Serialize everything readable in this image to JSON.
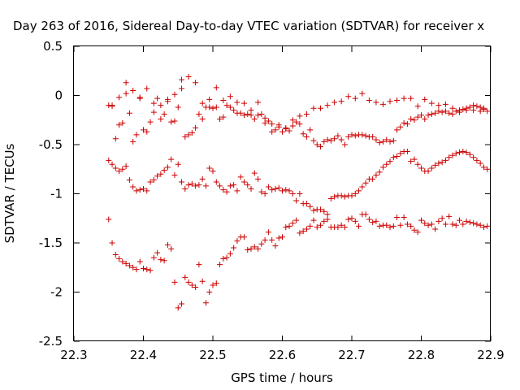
{
  "chart_data": {
    "type": "scatter",
    "title": "Day 263 of 2016, Sidereal Day-to-day VTEC variation (SDTVAR) for receiver x",
    "xlabel": "GPS time / hours",
    "ylabel": "SDTVAR / TECUs",
    "xlim": [
      22.3,
      22.9
    ],
    "ylim": [
      -2.5,
      0.5
    ],
    "xticks": [
      "22.3",
      "22.4",
      "22.5",
      "22.6",
      "22.7",
      "22.8",
      "22.9"
    ],
    "yticks": [
      "0.5",
      "0",
      "-0.5",
      "-1",
      "-1.5",
      "-2",
      "-2.5"
    ],
    "grid": false,
    "marker": "+",
    "color": "#cc0000",
    "series": [
      {
        "x": [
          22.35,
          22.355,
          22.36,
          22.365,
          22.37,
          22.375,
          22.38,
          22.385,
          22.39,
          22.395,
          22.4,
          22.405,
          22.41,
          22.415,
          22.42,
          22.425,
          22.43,
          22.435,
          22.44,
          22.445,
          22.45,
          22.455,
          22.46,
          22.465,
          22.47,
          22.475,
          22.48,
          22.485,
          22.49,
          22.495,
          22.5,
          22.505,
          22.51,
          22.515,
          22.52,
          22.525,
          22.53,
          22.535,
          22.54,
          22.545,
          22.55,
          22.555,
          22.56,
          22.565,
          22.57,
          22.575,
          22.58,
          22.585,
          22.59,
          22.595,
          22.6,
          22.605,
          22.61,
          22.615,
          22.62,
          22.625,
          22.63,
          22.635,
          22.64,
          22.645,
          22.65,
          22.655,
          22.66,
          22.665,
          22.67,
          22.675,
          22.68,
          22.685,
          22.69,
          22.695,
          22.7,
          22.705,
          22.71,
          22.715,
          22.72,
          22.725,
          22.73,
          22.735,
          22.74,
          22.745,
          22.75,
          22.755,
          22.76,
          22.765,
          22.77,
          22.775,
          22.78,
          22.785,
          22.79,
          22.795,
          22.8,
          22.805,
          22.81,
          22.815,
          22.82,
          22.825,
          22.83,
          22.835,
          22.84,
          22.845,
          22.85,
          22.855,
          22.86,
          22.865,
          22.87,
          22.875,
          22.88,
          22.885,
          22.89,
          22.895
        ],
        "y": [
          -0.1,
          -0.1,
          -0.44,
          -0.3,
          -0.28,
          0.13,
          -0.18,
          -0.47,
          -0.4,
          -0.03,
          -0.35,
          -0.37,
          -0.27,
          -0.17,
          -0.03,
          -0.24,
          -0.19,
          -0.06,
          -0.27,
          -0.26,
          -0.12,
          0.16,
          -0.42,
          -0.4,
          -0.38,
          -0.33,
          -0.19,
          -0.24,
          -0.12,
          -0.12,
          -0.13,
          -0.12,
          -0.24,
          -0.22,
          -0.1,
          -0.12,
          -0.15,
          -0.18,
          -0.18,
          -0.2,
          -0.19,
          -0.2,
          -0.24,
          -0.2,
          -0.19,
          -0.28,
          -0.26,
          -0.37,
          -0.35,
          -0.32,
          -0.37,
          -0.34,
          -0.36,
          -0.31,
          -0.27,
          -0.29,
          -0.39,
          -0.42,
          -0.35,
          -0.46,
          -0.5,
          -0.52,
          -0.47,
          -0.45,
          -0.46,
          -0.44,
          -0.41,
          -0.45,
          -0.5,
          -0.42,
          -0.4,
          -0.41,
          -0.4,
          -0.4,
          -0.41,
          -0.42,
          -0.42,
          -0.45,
          -0.48,
          -0.47,
          -0.45,
          -0.47,
          -0.46,
          -0.35,
          -0.32,
          -0.28,
          -0.29,
          -0.24,
          -0.25,
          -0.22,
          -0.2,
          -0.24,
          -0.2,
          -0.19,
          -0.18,
          -0.16,
          -0.17,
          -0.16,
          -0.18,
          -0.19,
          -0.16,
          -0.15,
          -0.14,
          -0.13,
          -0.12,
          -0.1,
          -0.11,
          -0.12,
          -0.14,
          -0.16
        ]
      },
      {
        "x": [
          22.355,
          22.365,
          22.375,
          22.385,
          22.395,
          22.405,
          22.415,
          22.425,
          22.435,
          22.445,
          22.455,
          22.465,
          22.475,
          22.485,
          22.495,
          22.505,
          22.515,
          22.525,
          22.535,
          22.545,
          22.555,
          22.565,
          22.575,
          22.585,
          22.595,
          22.605,
          22.615,
          22.625,
          22.635,
          22.645,
          22.655,
          22.665,
          22.675,
          22.685,
          22.695,
          22.705,
          22.715,
          22.725,
          22.735,
          22.745,
          22.755,
          22.765,
          22.775,
          22.785,
          22.795,
          22.805,
          22.815,
          22.825,
          22.835,
          22.845,
          22.855,
          22.865,
          22.875,
          22.885,
          22.89
        ],
        "y": [
          -0.11,
          -0.02,
          0.02,
          0.05,
          -0.02,
          0.07,
          -0.08,
          -0.1,
          -0.04,
          0.01,
          0.07,
          0.19,
          0.13,
          -0.08,
          -0.04,
          0.08,
          -0.05,
          -0.01,
          -0.07,
          -0.08,
          -0.15,
          -0.07,
          -0.23,
          -0.29,
          -0.3,
          -0.33,
          -0.25,
          -0.21,
          -0.19,
          -0.13,
          -0.13,
          -0.1,
          -0.07,
          -0.06,
          -0.01,
          -0.03,
          0.02,
          -0.05,
          -0.07,
          -0.09,
          -0.06,
          -0.05,
          -0.03,
          -0.03,
          -0.11,
          -0.04,
          -0.08,
          -0.1,
          -0.09,
          -0.13,
          -0.17,
          -0.15,
          -0.15,
          -0.16,
          -0.13
        ]
      },
      {
        "x": [
          22.35,
          22.355,
          22.36,
          22.365,
          22.37,
          22.375,
          22.38,
          22.385,
          22.39,
          22.395,
          22.4,
          22.405,
          22.41,
          22.415,
          22.42,
          22.425,
          22.43,
          22.435,
          22.44,
          22.445,
          22.45,
          22.455,
          22.46,
          22.465,
          22.47,
          22.475,
          22.48,
          22.485,
          22.49,
          22.495,
          22.5,
          22.505,
          22.51,
          22.515,
          22.52,
          22.525,
          22.53,
          22.535,
          22.54,
          22.545,
          22.55,
          22.555,
          22.56,
          22.565,
          22.57,
          22.575,
          22.58,
          22.585,
          22.59,
          22.595,
          22.6,
          22.605,
          22.61,
          22.615,
          22.62,
          22.625,
          22.63,
          22.635,
          22.64,
          22.645,
          22.65,
          22.655,
          22.66,
          22.665,
          22.67,
          22.675,
          22.68,
          22.685,
          22.69,
          22.695,
          22.7,
          22.705,
          22.71,
          22.715,
          22.72,
          22.725,
          22.73,
          22.735,
          22.74,
          22.745,
          22.75,
          22.755,
          22.76,
          22.765,
          22.77,
          22.775,
          22.78,
          22.785,
          22.79,
          22.795,
          22.8,
          22.805,
          22.81,
          22.815,
          22.82,
          22.825,
          22.83,
          22.835,
          22.84,
          22.845,
          22.85,
          22.855,
          22.86,
          22.865,
          22.87,
          22.875,
          22.88,
          22.885,
          22.89,
          22.895
        ],
        "y": [
          -0.66,
          -0.7,
          -0.74,
          -0.77,
          -0.75,
          -0.72,
          -0.86,
          -0.93,
          -0.97,
          -0.96,
          -0.95,
          -0.97,
          -0.88,
          -0.86,
          -0.82,
          -0.8,
          -0.76,
          -0.73,
          -0.65,
          -0.81,
          -0.7,
          -0.88,
          -0.95,
          -0.91,
          -0.9,
          -0.92,
          -0.91,
          -0.85,
          -0.92,
          -0.74,
          -0.77,
          -0.88,
          -0.92,
          -0.96,
          -0.98,
          -0.92,
          -0.91,
          -0.97,
          -0.83,
          -0.88,
          -0.91,
          -0.95,
          -0.79,
          -0.85,
          -0.98,
          -1.0,
          -0.93,
          -0.96,
          -0.95,
          -0.94,
          -0.97,
          -0.96,
          -0.97,
          -1.0,
          -1.07,
          -1.0,
          -1.1,
          -1.1,
          -1.13,
          -1.17,
          -1.16,
          -1.16,
          -1.18,
          -1.21,
          -1.05,
          -1.03,
          -1.02,
          -1.02,
          -1.03,
          -1.02,
          -1.02,
          -1.0,
          -0.97,
          -0.93,
          -0.89,
          -0.85,
          -0.85,
          -0.81,
          -0.78,
          -0.73,
          -0.7,
          -0.67,
          -0.63,
          -0.62,
          -0.59,
          -0.57,
          -0.57,
          -0.67,
          -0.65,
          -0.7,
          -0.74,
          -0.77,
          -0.77,
          -0.74,
          -0.71,
          -0.69,
          -0.68,
          -0.66,
          -0.63,
          -0.61,
          -0.59,
          -0.58,
          -0.57,
          -0.58,
          -0.6,
          -0.63,
          -0.66,
          -0.69,
          -0.73,
          -0.75
        ]
      },
      {
        "x": [
          22.35,
          22.355,
          22.36,
          22.365,
          22.37,
          22.375,
          22.38,
          22.385,
          22.39,
          22.395,
          22.4,
          22.405,
          22.41,
          22.415,
          22.42,
          22.425,
          22.43,
          22.435,
          22.44,
          22.445,
          22.45,
          22.455,
          22.46,
          22.465,
          22.47,
          22.475,
          22.48,
          22.485,
          22.49,
          22.495,
          22.5,
          22.505,
          22.51,
          22.515,
          22.52,
          22.525,
          22.53,
          22.535,
          22.54,
          22.545,
          22.55,
          22.555,
          22.56,
          22.565,
          22.57,
          22.575,
          22.58,
          22.585,
          22.59,
          22.595,
          22.6,
          22.605,
          22.61,
          22.615,
          22.62,
          22.625,
          22.63,
          22.635,
          22.64,
          22.645,
          22.65,
          22.655,
          22.66,
          22.665,
          22.67,
          22.675,
          22.68,
          22.685,
          22.69,
          22.695,
          22.7,
          22.705,
          22.71,
          22.715,
          22.72,
          22.725,
          22.73,
          22.735,
          22.74,
          22.745,
          22.75,
          22.755,
          22.76,
          22.765,
          22.77,
          22.775,
          22.78,
          22.785,
          22.79,
          22.795,
          22.8,
          22.805,
          22.81,
          22.815,
          22.82,
          22.825,
          22.83,
          22.835,
          22.84,
          22.845,
          22.85,
          22.855,
          22.86,
          22.865,
          22.87,
          22.875,
          22.88,
          22.885,
          22.89,
          22.895
        ],
        "y": [
          -1.26,
          -1.5,
          -1.62,
          -1.66,
          -1.69,
          -1.71,
          -1.73,
          -1.75,
          -1.77,
          -1.69,
          -1.76,
          -1.77,
          -1.78,
          -1.65,
          -1.6,
          -1.67,
          -1.68,
          -1.52,
          -1.56,
          -1.9,
          -2.16,
          -2.12,
          -1.85,
          -1.9,
          -1.93,
          -1.95,
          -1.72,
          -1.89,
          -2.11,
          -2.0,
          -1.93,
          -1.91,
          -1.72,
          -1.66,
          -1.65,
          -1.61,
          -1.55,
          -1.48,
          -1.44,
          -1.44,
          -1.57,
          -1.56,
          -1.54,
          -1.56,
          -1.51,
          -1.47,
          -1.39,
          -1.47,
          -1.53,
          -1.45,
          -1.44,
          -1.34,
          -1.33,
          -1.3,
          -1.27,
          -1.4,
          -1.38,
          -1.36,
          -1.33,
          -1.27,
          -1.34,
          -1.32,
          -1.28,
          -1.26,
          -1.34,
          -1.34,
          -1.34,
          -1.32,
          -1.34,
          -1.26,
          -1.25,
          -1.28,
          -1.33,
          -1.21,
          -1.21,
          -1.26,
          -1.29,
          -1.28,
          -1.33,
          -1.32,
          -1.32,
          -1.34,
          -1.33,
          -1.24,
          -1.32,
          -1.24,
          -1.31,
          -1.33,
          -1.37,
          -1.39,
          -1.27,
          -1.3,
          -1.32,
          -1.31,
          -1.36,
          -1.28,
          -1.25,
          -1.31,
          -1.23,
          -1.31,
          -1.32,
          -1.27,
          -1.31,
          -1.28,
          -1.29,
          -1.3,
          -1.31,
          -1.32,
          -1.34,
          -1.33
        ]
      }
    ]
  }
}
